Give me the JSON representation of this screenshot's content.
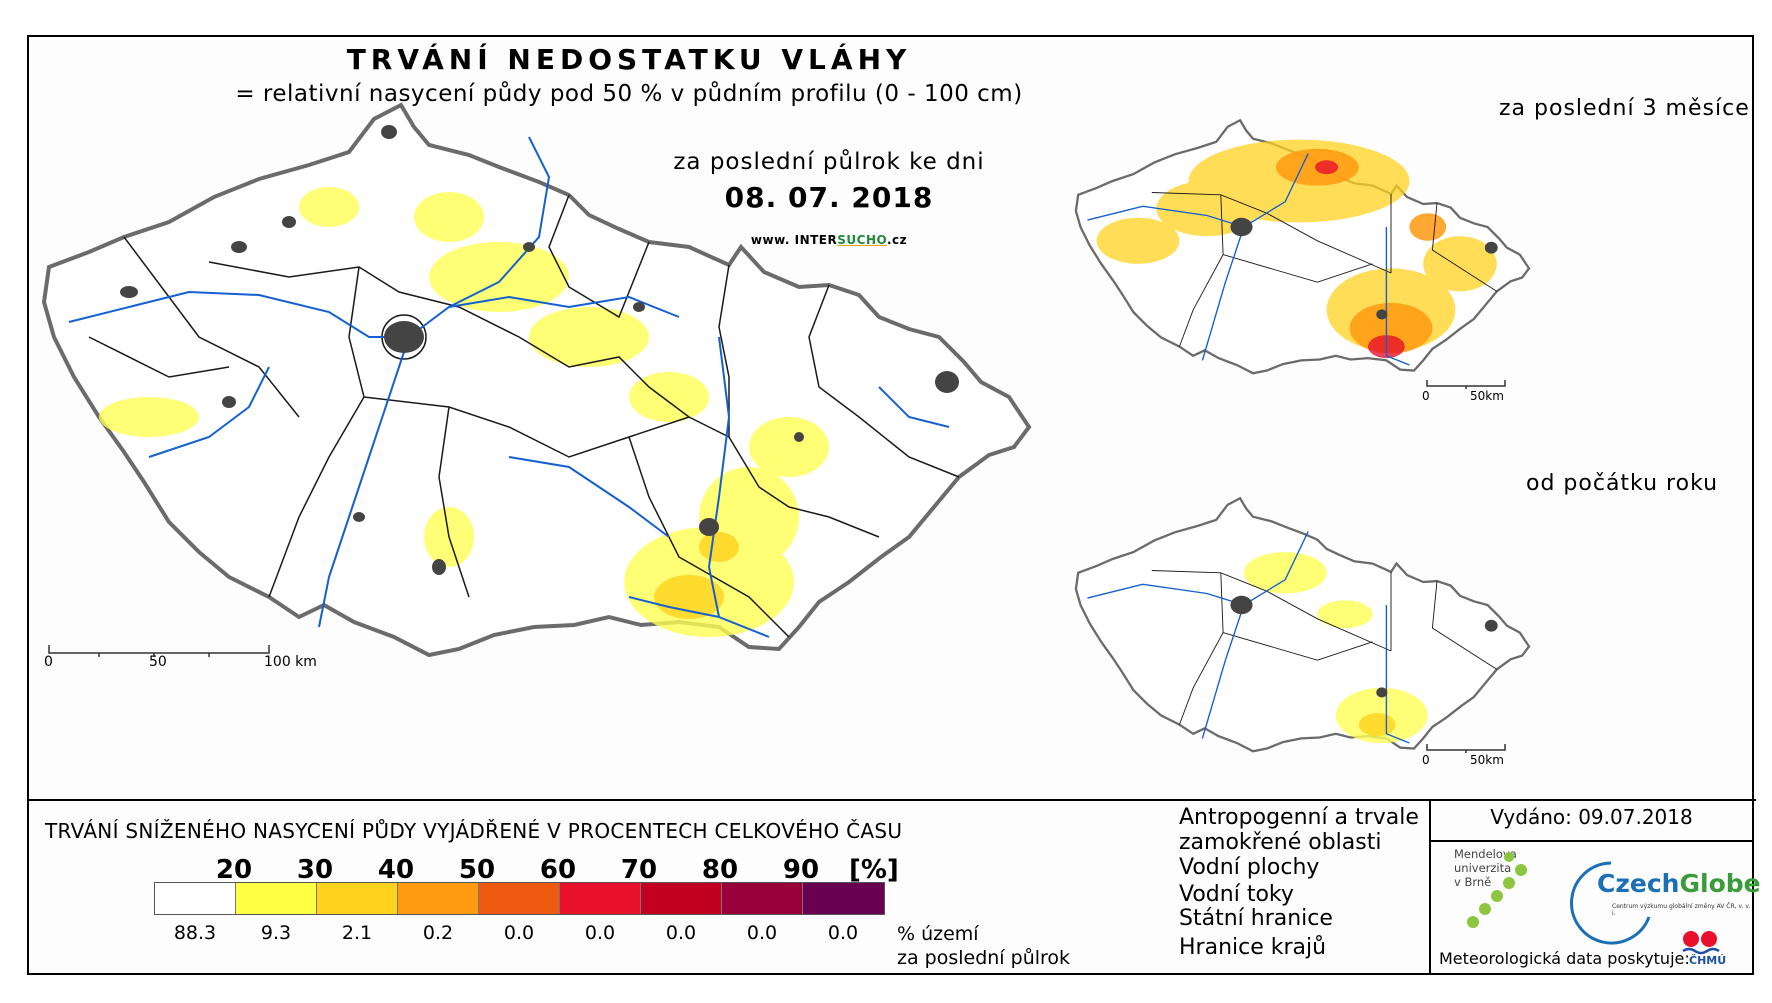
{
  "header": {
    "title": "TRVÁNÍ NEDOSTATKU VLÁHY",
    "subtitle": "= relativní nasycení půdy pod 50 % v půdním profilu (0 - 100 cm)",
    "period": "za poslední půlrok ke dni",
    "date": "08. 07. 2018",
    "website_prefix": "www. INTER",
    "website_mid": "SUCHO",
    "website_suffix": ".cz"
  },
  "insets": {
    "three_months_label": "za poslední 3 měsíce",
    "year_start_label": "od počátku roku",
    "scale_0": "0",
    "scale_50": "50km"
  },
  "main_map": {
    "scale_0": "0",
    "scale_50": "50",
    "scale_100": "100 km"
  },
  "legend": {
    "title": "TRVÁNÍ SNÍŽENÉHO NASYCENÍ PŮDY VYJÁDŘENÉ V PROCENTECH CELKOVÉHO ČASU",
    "thresholds": [
      "20",
      "30",
      "40",
      "50",
      "60",
      "70",
      "80",
      "90"
    ],
    "unit": "[%]",
    "colors": [
      "#ffffff",
      "#ffff44",
      "#ffd21e",
      "#ff9a10",
      "#ee5a10",
      "#e8102a",
      "#c20020",
      "#98003a",
      "#6a0050"
    ],
    "area_values": [
      "88.3",
      "9.3",
      "2.1",
      "0.2",
      "0.0",
      "0.0",
      "0.0",
      "0.0",
      "0.0"
    ],
    "area_note_line1": "% území",
    "area_note_line2": "za poslední půlrok"
  },
  "map_legend": {
    "urban_line1": "Antropogenní a trvale",
    "urban_line2": "zamokřené oblasti",
    "water": "Vodní plochy",
    "rivers": "Vodní toky",
    "state_border": "Státní hranice",
    "region_border": "Hranice krajů"
  },
  "credits": {
    "issued": "Vydáno: 09.07.2018",
    "mendel_line1": "Mendelova",
    "mendel_line2": "univerzita",
    "mendel_line3": "v Brně",
    "czechglobe_a": "Czech",
    "czechglobe_b": "Globe",
    "czechglobe_sub": "Centrum výzkumu globální změny AV ČR, v. v. i.",
    "met_data": "Meteorologická data poskytuje:",
    "chmu": "ČHMÚ"
  }
}
